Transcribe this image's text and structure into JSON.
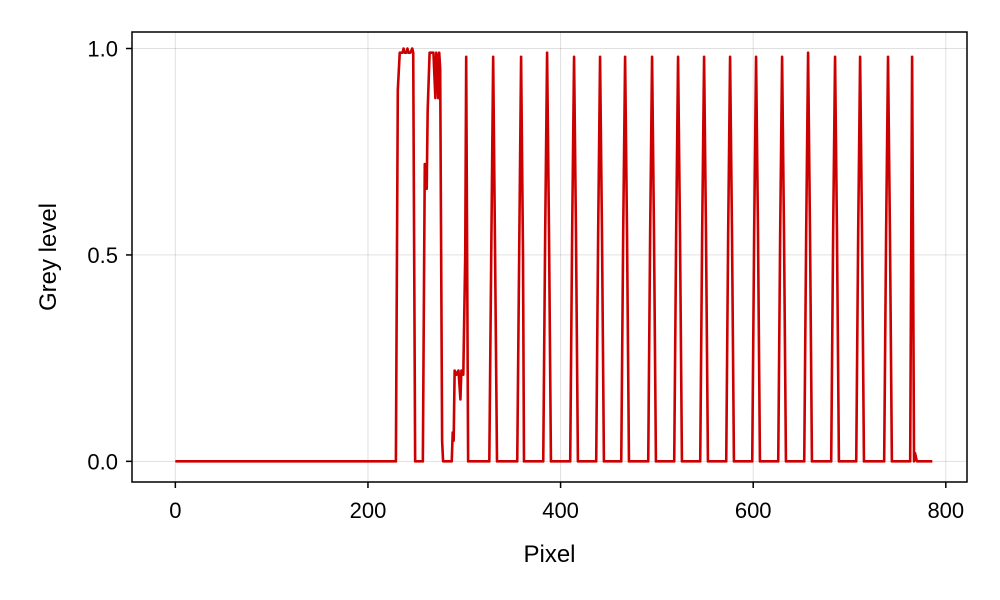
{
  "chart_data": {
    "type": "line",
    "title": "",
    "xlabel": "Pixel",
    "ylabel": "Grey level",
    "xlim": [
      -45,
      822
    ],
    "ylim": [
      -0.05,
      1.04
    ],
    "xticks": [
      0,
      200,
      400,
      600,
      800
    ],
    "yticks": [
      0.0,
      0.5,
      1.0
    ],
    "xtick_labels": [
      "0",
      "200",
      "400",
      "600",
      "800"
    ],
    "ytick_labels": [
      "0.0",
      "0.5",
      "1.0"
    ],
    "grid": true,
    "legend": "none",
    "series": [
      {
        "color": "#cc0000",
        "x": [
          0,
          229,
          231,
          233,
          234,
          236,
          237,
          238,
          240,
          241,
          242,
          244,
          246,
          247,
          249,
          257,
          259,
          261,
          262,
          264,
          265,
          268,
          270,
          271,
          272,
          273,
          274,
          275,
          277,
          278,
          287,
          288,
          289,
          290,
          292,
          294,
          296,
          297,
          299,
          301,
          302,
          304,
          326,
          328,
          330,
          332,
          334,
          355,
          357,
          359,
          361,
          362,
          382,
          384,
          386,
          388,
          390,
          410,
          412,
          414,
          416,
          418,
          437,
          439,
          441,
          443,
          445,
          463,
          465,
          467,
          469,
          471,
          491,
          493,
          495,
          497,
          499,
          518,
          520,
          522,
          524,
          526,
          545,
          547,
          549,
          551,
          553,
          572,
          574,
          576,
          578,
          580,
          599,
          601,
          603,
          605,
          607,
          626,
          628,
          630,
          632,
          634,
          653,
          655,
          657,
          659,
          661,
          681,
          683,
          685,
          687,
          689,
          707,
          709,
          711,
          713,
          715,
          736,
          738,
          740,
          742,
          744,
          763,
          765,
          766,
          767,
          768,
          770,
          786
        ],
        "y": [
          0,
          0,
          0.9,
          0.99,
          0.99,
          0.99,
          1.0,
          0.99,
          0.99,
          1.0,
          0.99,
          0.99,
          1.0,
          0.99,
          0,
          0,
          0.72,
          0.66,
          0.85,
          0.99,
          0.99,
          0.99,
          0.88,
          0.99,
          0.97,
          0.88,
          0.99,
          0.95,
          0.05,
          0,
          0,
          0.07,
          0.05,
          0.22,
          0.21,
          0.22,
          0.15,
          0.22,
          0.21,
          0.5,
          0.98,
          0,
          0,
          0.5,
          0.98,
          0.5,
          0,
          0,
          0.5,
          0.98,
          0.5,
          0,
          0,
          0.55,
          0.99,
          0.55,
          0,
          0,
          0.55,
          0.98,
          0.55,
          0,
          0,
          0.55,
          0.98,
          0.55,
          0,
          0,
          0.55,
          0.98,
          0.55,
          0,
          0,
          0.55,
          0.98,
          0.55,
          0,
          0,
          0.55,
          0.98,
          0.55,
          0,
          0,
          0.55,
          0.98,
          0.55,
          0,
          0,
          0.55,
          0.98,
          0.55,
          0,
          0,
          0.55,
          0.98,
          0.55,
          0,
          0,
          0.55,
          0.98,
          0.55,
          0,
          0,
          0.55,
          0.99,
          0.55,
          0,
          0,
          0.55,
          0.98,
          0.55,
          0,
          0,
          0.55,
          0.98,
          0.55,
          0,
          0,
          0.55,
          0.98,
          0.55,
          0,
          0,
          0.98,
          0.5,
          0,
          0.02,
          0,
          0
        ]
      }
    ]
  }
}
